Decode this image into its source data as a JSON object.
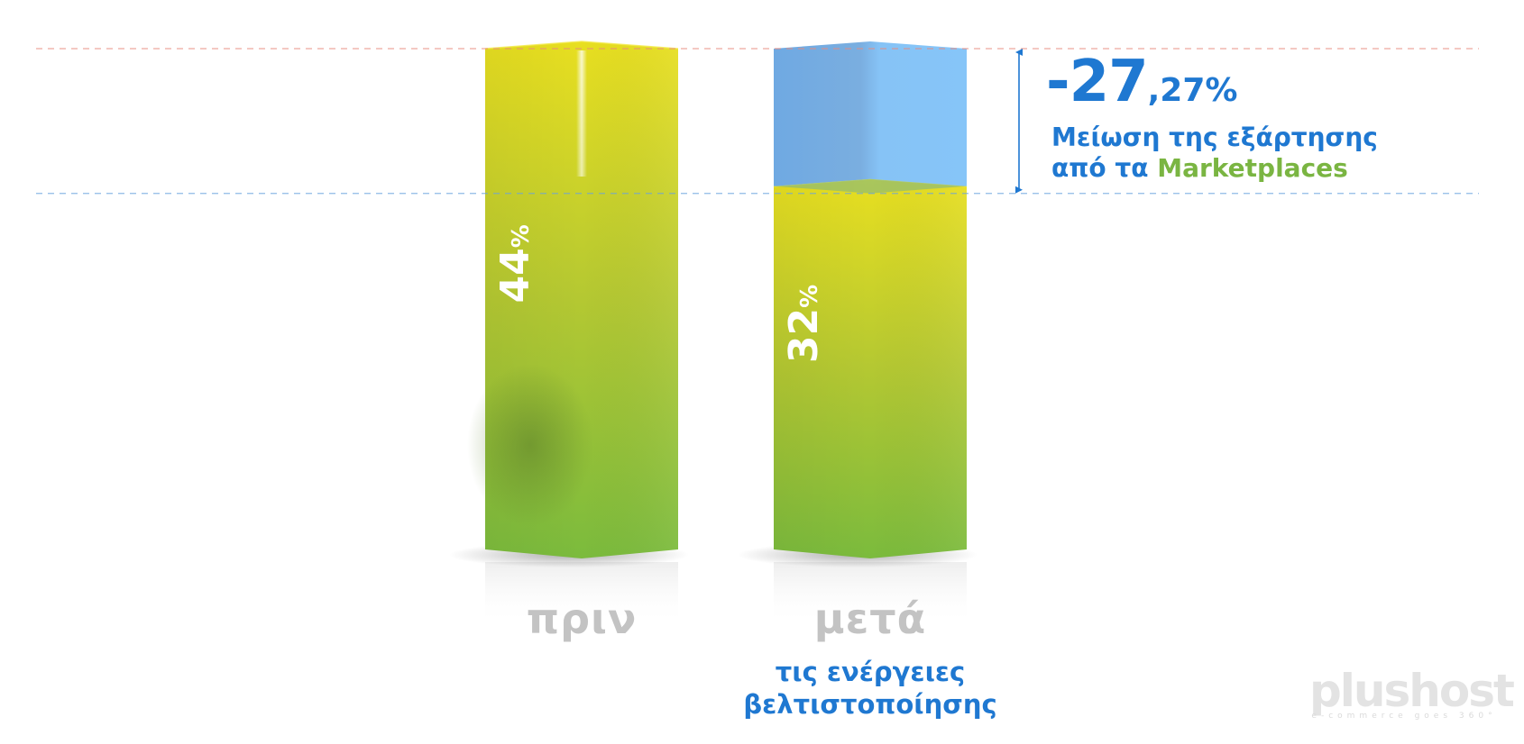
{
  "chart_data": {
    "type": "bar",
    "categories": [
      "πριν",
      "μετά"
    ],
    "series": [
      {
        "values": [
          44,
          32
        ]
      }
    ],
    "value_labels": [
      {
        "number": "44",
        "suffix": "%"
      },
      {
        "number": "32",
        "suffix": "%"
      }
    ],
    "category_subtitles": [
      "",
      "τις ενέργειες βελτιστοποίησης"
    ],
    "category_subtitle_lines": [
      "τις ενέργειες",
      "βελτιστοποίησης"
    ],
    "change": {
      "integer_part": "-27",
      "decimal_part": ",27%",
      "value": -27.27,
      "description_line1": "Μείωση της εξάρτησης",
      "description_line2_prefix": "από τα ",
      "description_line2_highlight": "Marketplaces"
    },
    "ylim": [
      0,
      44
    ],
    "grid": true,
    "colors": {
      "bar_top": "#e8df20",
      "bar_bottom": "#7bbb3d",
      "reduction": "#7db8f0",
      "accent_blue": "#1f78d1",
      "accent_green": "#7ab542",
      "category_label": "#c3c3c3"
    }
  },
  "branding": {
    "logo_text": "plushost",
    "logo_tagline": "e-commerce goes 360°"
  }
}
